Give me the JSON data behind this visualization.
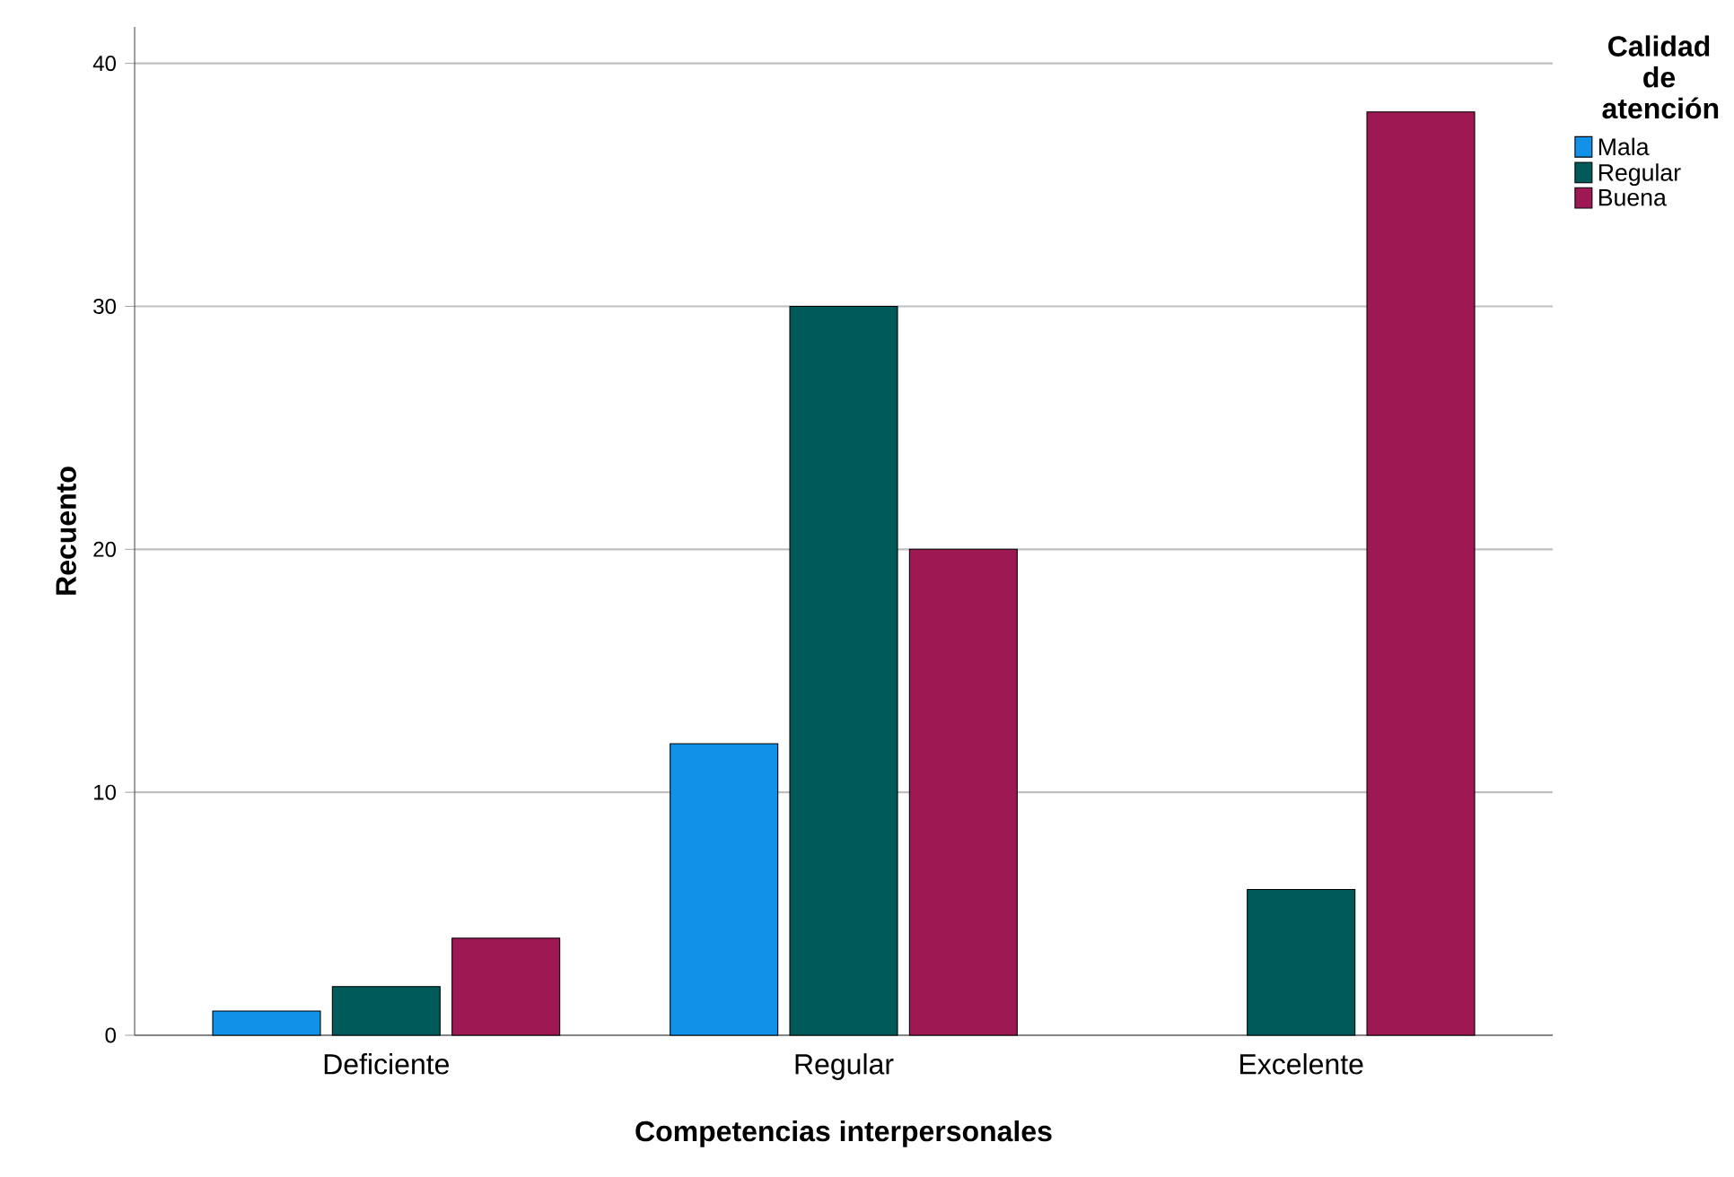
{
  "chart_data": {
    "type": "bar",
    "xlabel": "Competencias interpersonales",
    "ylabel": "Recuento",
    "legend_title": "Calidad de atención",
    "categories": [
      "Deficiente",
      "Regular",
      "Excelente"
    ],
    "series": [
      {
        "name": "Mala",
        "color": "#1192e8",
        "values": [
          1,
          12,
          null
        ]
      },
      {
        "name": "Regular",
        "color": "#005a5a",
        "values": [
          2,
          30,
          6
        ]
      },
      {
        "name": "Buena",
        "color": "#9e1853",
        "values": [
          4,
          20,
          38
        ]
      }
    ],
    "ylim": [
      0,
      41.5
    ],
    "yticks": [
      0,
      10,
      20,
      30,
      40
    ],
    "grid": "y",
    "legend": "top right"
  }
}
